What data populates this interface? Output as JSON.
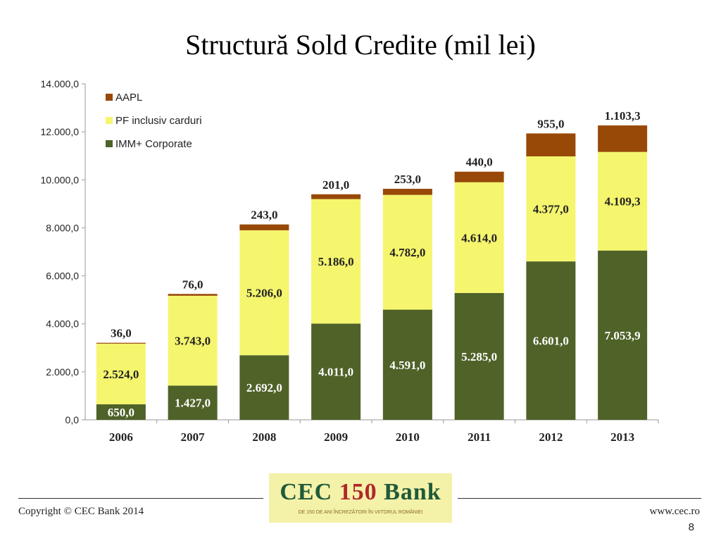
{
  "slide": {
    "title": "Structură Sold Credite (mil lei)",
    "copyright": "Copyright © CEC Bank 2014",
    "website": "www.cec.ro",
    "page_number": "8"
  },
  "logo": {
    "left": "CEC",
    "number": "150",
    "right": "Bank",
    "tagline": "DE 150 DE ANI ÎNCREZĂTORI ÎN VIITORUL ROMÂNIEI"
  },
  "chart_data": {
    "type": "bar",
    "stacked": true,
    "categories": [
      "2006",
      "2007",
      "2008",
      "2009",
      "2010",
      "2011",
      "2012",
      "2013"
    ],
    "series": [
      {
        "name": "IMM+ Corporate",
        "color": "#4f6228",
        "values": [
          650.0,
          1427.0,
          2692.0,
          4011.0,
          4591.0,
          5285.0,
          6601.0,
          7053.9
        ],
        "labels": [
          "650,0",
          "1.427,0",
          "2.692,0",
          "4.011,0",
          "4.591,0",
          "5.285,0",
          "6.601,0",
          "7.053,9"
        ]
      },
      {
        "name": "PF inclusiv carduri",
        "color": "#f5f56e",
        "values": [
          2524.0,
          3743.0,
          5206.0,
          5186.0,
          4782.0,
          4614.0,
          4377.0,
          4109.3
        ],
        "labels": [
          "2.524,0",
          "3.743,0",
          "5.206,0",
          "5.186,0",
          "4.782,0",
          "4.614,0",
          "4.377,0",
          "4.109,3"
        ]
      },
      {
        "name": "AAPL",
        "color": "#984807",
        "values": [
          36.0,
          76.0,
          243.0,
          201.0,
          253.0,
          440.0,
          955.0,
          1103.3
        ],
        "labels": [
          "36,0",
          "76,0",
          "243,0",
          "201,0",
          "253,0",
          "440,0",
          "955,0",
          "1.103,3"
        ]
      }
    ],
    "ylim": [
      0,
      14000
    ],
    "yticks": [
      0,
      2000,
      4000,
      6000,
      8000,
      10000,
      12000,
      14000
    ],
    "ytick_labels": [
      "0,0",
      "2.000,0",
      "4.000,0",
      "6.000,0",
      "8.000,0",
      "10.000,0",
      "12.000,0",
      "14.000,0"
    ],
    "legend_entries": [
      "AAPL",
      "PF inclusiv carduri",
      "IMM+ Corporate"
    ],
    "legend_position": "top-left",
    "grid": false
  }
}
